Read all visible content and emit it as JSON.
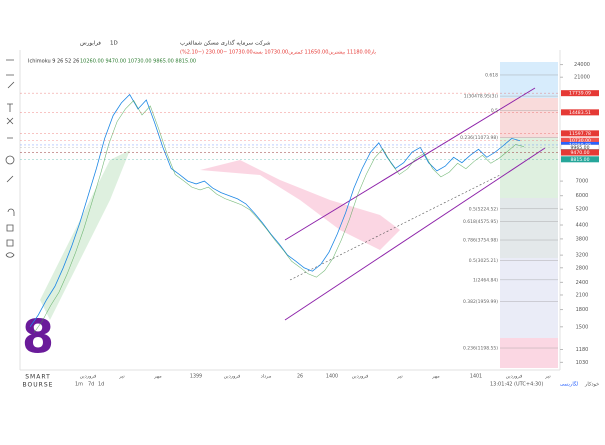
{
  "header": {
    "symbol": "شرکت سرمایه گذاری مسکن شمالغرب",
    "interval": "1D",
    "exchange": "فرابورس",
    "ohlc": "باز11180.00 بیشترین11650.00 کمترین10730.00 بسته10730.00 −230.00 (−2.10%)",
    "indicator": "Ichimoku 9 26 52 26",
    "indicator_values": "10260.00 9470.00 10730.00 9865.00 8815.00"
  },
  "price_axis": {
    "ylim": [
      950,
      28000
    ],
    "ticks": [
      24000,
      21000,
      7000,
      6000,
      5200,
      4400,
      3800,
      3200,
      2800,
      2400,
      2100,
      1800,
      1500,
      1180,
      1030
    ],
    "badges": [
      {
        "value": 17739.09,
        "label": "17739.09",
        "color": "#e53935"
      },
      {
        "value": 14483.51,
        "label": "14483.51",
        "color": "#e53935"
      },
      {
        "value": 11597.78,
        "label": "11597.78",
        "color": "#e53935"
      },
      {
        "value": 10730,
        "label": "10730.00",
        "color": "#ef5350"
      },
      {
        "value": 10260,
        "label": "10260.00",
        "color": "#2962ff"
      },
      {
        "value": 9965,
        "label": "9965.00",
        "color": "#ffffff"
      },
      {
        "value": 9498.52,
        "label": "9498.52",
        "color": "#37474f"
      },
      {
        "value": 9470,
        "label": "9470.00",
        "color": "#e53935"
      },
      {
        "value": 8815,
        "label": "8815.00",
        "color": "#26a69a"
      }
    ]
  },
  "fib": [
    {
      "value": 21500,
      "label": "0.618"
    },
    {
      "value": 17200,
      "label": "1(30478.95(3))"
    },
    {
      "value": 14800,
      "label": "0.5"
    },
    {
      "value": 11073.98,
      "label": "0.236(11073.98)"
    },
    {
      "value": 5224.52,
      "label": "0.5(5224.52)"
    },
    {
      "value": 4575.95,
      "label": "0.618(4575.95)"
    },
    {
      "value": 3754.98,
      "label": "0.786(3754.98)"
    },
    {
      "value": 3025.21,
      "label": "0.5(3025.21)"
    },
    {
      "value": 2464.84,
      "label": "1(2464.84)"
    },
    {
      "value": 1959.99,
      "label": "0.382(1959.99)"
    },
    {
      "value": 1198.55,
      "label": "0.236(1198.55)"
    }
  ],
  "price": {
    "values": [
      1500,
      1700,
      2000,
      2300,
      2800,
      3500,
      4500,
      6000,
      8000,
      11000,
      14000,
      16000,
      17500,
      15000,
      16500,
      13000,
      10000,
      8000,
      7500,
      7000,
      6800,
      7000,
      6500,
      6200,
      6000,
      5800,
      5500,
      5000,
      4500,
      4000,
      3600,
      3200,
      3000,
      2800,
      2700,
      2900,
      3300,
      4000,
      5000,
      6500,
      8000,
      9500,
      10500,
      9000,
      8000,
      8500,
      9500,
      10000,
      8500,
      7800,
      8200,
      9000,
      8500,
      9200,
      9800,
      9000,
      9500,
      10200,
      11000,
      10730
    ]
  },
  "time_axis": [
    "فروردین",
    "تیر",
    "مهر",
    "1399",
    "فروردین",
    "مرداد",
    "26",
    "1400",
    "فروردین",
    "تیر",
    "مهر",
    "1401",
    "فروردین",
    "تیر"
  ],
  "toolbar": {
    "ranges": [
      "1m",
      "7d",
      "1d"
    ],
    "clock": "13:01:42 (UTC+4:30)",
    "log": "لگاریتمی",
    "auto": "خودکار"
  },
  "logo": {
    "mark": "8",
    "line1": "SMART",
    "line2": "BOURSE"
  }
}
